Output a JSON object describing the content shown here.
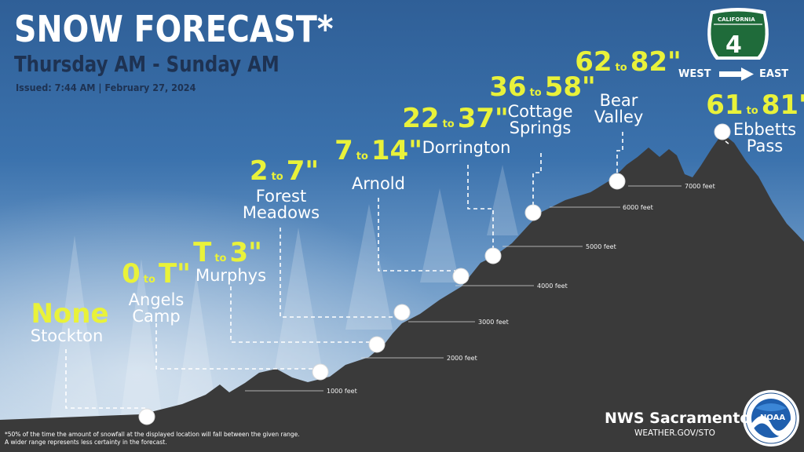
{
  "header": {
    "title": "SNOW FORECAST*",
    "subtitle": "Thursday AM - Sunday AM",
    "issued": "Issued: 7:44 AM | February 27, 2024"
  },
  "route": {
    "state_label": "CALIFORNIA",
    "number": "4",
    "west": "WEST",
    "east": "EAST"
  },
  "locations": [
    {
      "name": "Stockton",
      "low": "None",
      "high": "",
      "connector": "",
      "line2": ""
    },
    {
      "name": "Angels",
      "line2": "Camp",
      "low": "0",
      "connector": "to",
      "high": "T\""
    },
    {
      "name": "Murphys",
      "line2": "",
      "low": "T",
      "connector": "to",
      "high": "3\""
    },
    {
      "name": "Forest",
      "line2": "Meadows",
      "low": "2",
      "connector": "to",
      "high": "7\""
    },
    {
      "name": "Arnold",
      "line2": "",
      "low": "7",
      "connector": "to",
      "high": "14\""
    },
    {
      "name": "Dorrington",
      "line2": "",
      "low": "22",
      "connector": "to",
      "high": "37\""
    },
    {
      "name": "Cottage",
      "line2": "Springs",
      "low": "36",
      "connector": "to",
      "high": "58\""
    },
    {
      "name": "Bear",
      "line2": "Valley",
      "low": "62",
      "connector": "to",
      "high": "82\""
    },
    {
      "name": "Ebbetts",
      "line2": "Pass",
      "low": "61",
      "connector": "to",
      "high": "81\""
    }
  ],
  "elevations": [
    "1000 feet",
    "2000 feet",
    "3000 feet",
    "4000 feet",
    "5000 feet",
    "6000 feet",
    "7000 feet"
  ],
  "footnote": {
    "line1": "*50% of the time the amount of snowfall at the displayed location will fall between the given range.",
    "line2": "A wider range represents less certainty in the forecast."
  },
  "office": {
    "name": "NWS Sacramento",
    "url": "WEATHER.GOV/STO",
    "logo_text": "NOAA"
  },
  "colors": {
    "forecast": "#e9f23a",
    "terrain": "#3a3a3a",
    "sky_top": "#2f5f97",
    "shield": "#1f6b3a"
  }
}
